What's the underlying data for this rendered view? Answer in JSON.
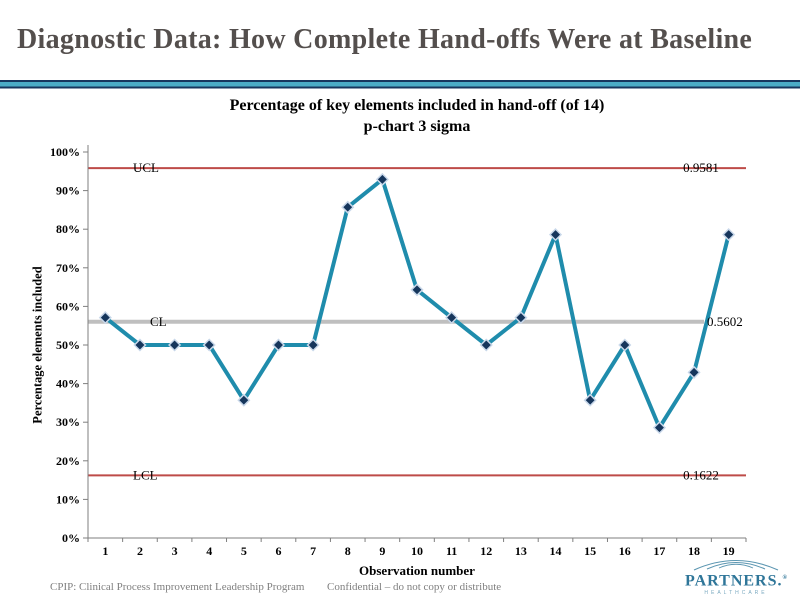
{
  "slide": {
    "title": "Diagnostic Data: How Complete Hand-offs Were at Baseline"
  },
  "chart_data": {
    "type": "line",
    "title": "Percentage of key elements included in hand-off (of 14)",
    "subtitle": "p-chart 3 sigma",
    "xlabel": "Observation number",
    "ylabel": "Percentage elements included",
    "x": [
      1,
      2,
      3,
      4,
      5,
      6,
      7,
      8,
      9,
      10,
      11,
      12,
      13,
      14,
      15,
      16,
      17,
      18,
      19
    ],
    "values": [
      57.1,
      50.0,
      50.0,
      50.0,
      35.7,
      50.0,
      50.0,
      85.7,
      92.9,
      64.3,
      57.1,
      50.0,
      57.1,
      78.6,
      35.7,
      50.0,
      28.6,
      42.9,
      78.6
    ],
    "ylim": [
      0,
      100
    ],
    "ytick_step": 10,
    "ytick_suffix": "%",
    "grid": "off",
    "legend": "none",
    "control_lines": {
      "ucl": {
        "label": "UCL",
        "value": 0.9581,
        "value_label": "0.9581",
        "color": "#be4b48"
      },
      "cl": {
        "label": "CL",
        "value": 0.5602,
        "value_label": "0.5602",
        "color": "#bfbfbf"
      },
      "lcl": {
        "label": "LCL",
        "value": 0.1622,
        "value_label": "0.1622",
        "color": "#be4b48"
      }
    },
    "colors": {
      "series": "#1f8cac",
      "marker": "#16365c",
      "marker_halo": "#c9d8ea",
      "axis": "#7f7f7f"
    }
  },
  "footer": {
    "left": "CPIP: Clinical Process Improvement Leadership Program",
    "center": "Confidential – do not copy or distribute"
  },
  "logo": {
    "name": "PARTNERS.",
    "reg": "®",
    "sub": "HEALTHCARE"
  },
  "theme": {
    "title_color": "#544f4d",
    "separator_navy": "#17375e",
    "separator_teal": "#4bacc6",
    "logo_teal": "#2f7699",
    "footer_gray": "#7f7f7f"
  }
}
